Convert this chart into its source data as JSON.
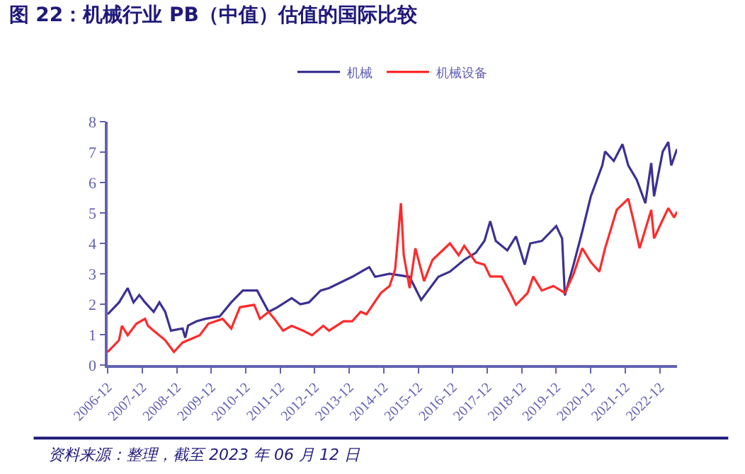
{
  "chart_data": {
    "type": "line",
    "title": "图 22：机械行业 PB（中值）估值的国际比较",
    "annotations": [
      "资料来源：整理，截至 2023 年 06 月 12 日"
    ],
    "series": [
      {
        "name": "机械",
        "color": "#3b3193",
        "x": [
          "2006-12",
          "2007-04",
          "2007-07",
          "2007-09",
          "2007-11",
          "2008-01",
          "2008-04",
          "2008-06",
          "2008-08",
          "2008-10",
          "2009-02",
          "2009-03",
          "2009-04",
          "2009-07",
          "2009-10",
          "2010-03",
          "2010-07",
          "2010-11",
          "2011-04",
          "2011-08",
          "2011-11",
          "2012-04",
          "2012-07",
          "2012-10",
          "2013-02",
          "2013-05",
          "2014-01",
          "2014-07",
          "2014-09",
          "2015-02",
          "2015-09",
          "2016-01",
          "2016-07",
          "2016-11",
          "2017-04",
          "2017-08",
          "2017-11",
          "2018-01",
          "2018-03",
          "2018-07",
          "2018-10",
          "2019-01",
          "2019-03",
          "2019-07",
          "2019-12",
          "2020-02",
          "2020-03",
          "2020-06",
          "2020-09",
          "2020-12",
          "2021-04",
          "2021-05",
          "2021-08",
          "2021-11",
          "2022-01",
          "2022-04",
          "2022-07",
          "2022-09",
          "2022-10",
          "2023-01",
          "2023-03",
          "2023-04",
          "2023-06"
        ],
        "values": [
          1.67,
          2.06,
          2.53,
          2.06,
          2.3,
          2.06,
          1.75,
          2.06,
          1.75,
          1.13,
          1.2,
          0.9,
          1.3,
          1.44,
          1.52,
          1.6,
          2.06,
          2.45,
          2.45,
          1.75,
          1.9,
          2.2,
          2.0,
          2.06,
          2.45,
          2.53,
          2.9,
          3.22,
          2.9,
          3.0,
          2.9,
          2.14,
          2.9,
          3.07,
          3.46,
          3.69,
          4.08,
          4.73,
          4.08,
          3.77,
          4.23,
          3.3,
          4.0,
          4.08,
          4.57,
          4.16,
          2.29,
          3.3,
          4.39,
          5.55,
          6.56,
          7.02,
          6.71,
          7.26,
          6.56,
          6.09,
          5.32,
          6.64,
          5.55,
          7.02,
          7.33,
          6.56,
          7.1
        ]
      },
      {
        "name": "机械设备",
        "color": "#ff2a2a",
        "x": [
          "2006-12",
          "2007-04",
          "2007-05",
          "2007-07",
          "2007-10",
          "2008-01",
          "2008-02",
          "2008-04",
          "2008-08",
          "2008-11",
          "2009-02",
          "2009-08",
          "2009-11",
          "2010-04",
          "2010-07",
          "2010-10",
          "2011-03",
          "2011-05",
          "2011-08",
          "2011-10",
          "2012-01",
          "2012-04",
          "2012-08",
          "2012-11",
          "2013-03",
          "2013-05",
          "2013-10",
          "2014-01",
          "2014-04",
          "2014-06",
          "2014-11",
          "2015-02",
          "2015-04",
          "2015-06",
          "2015-07",
          "2015-09",
          "2015-11",
          "2016-02",
          "2016-05",
          "2016-11",
          "2017-02",
          "2017-04",
          "2017-08",
          "2017-11",
          "2018-01",
          "2018-05",
          "2018-08",
          "2018-10",
          "2019-02",
          "2019-04",
          "2019-07",
          "2019-11",
          "2020-03",
          "2020-06",
          "2020-09",
          "2020-12",
          "2021-03",
          "2021-05",
          "2021-09",
          "2022-01",
          "2022-03",
          "2022-05",
          "2022-09",
          "2022-10",
          "2023-01",
          "2023-03",
          "2023-05",
          "2023-06"
        ],
        "values": [
          0.43,
          0.82,
          1.29,
          0.98,
          1.36,
          1.52,
          1.29,
          1.13,
          0.82,
          0.43,
          0.74,
          0.98,
          1.36,
          1.52,
          1.2,
          1.9,
          1.98,
          1.52,
          1.75,
          1.52,
          1.13,
          1.29,
          1.13,
          0.98,
          1.29,
          1.13,
          1.44,
          1.44,
          1.75,
          1.67,
          2.37,
          2.6,
          3.15,
          5.32,
          3.61,
          2.53,
          3.84,
          2.76,
          3.46,
          4.0,
          3.61,
          3.92,
          3.38,
          3.3,
          2.91,
          2.91,
          2.37,
          1.98,
          2.37,
          2.91,
          2.45,
          2.6,
          2.37,
          2.99,
          3.84,
          3.38,
          3.07,
          3.84,
          5.1,
          5.47,
          4.7,
          3.84,
          5.1,
          4.16,
          4.78,
          5.16,
          4.85,
          5.04
        ]
      }
    ],
    "xlim": [
      "2006-12",
      "2023-06"
    ],
    "xticks": [
      "2006-12",
      "2007-12",
      "2008-12",
      "2009-12",
      "2010-12",
      "2011-12",
      "2012-12",
      "2013-12",
      "2014-12",
      "2015-12",
      "2016-12",
      "2017-12",
      "2018-12",
      "2019-12",
      "2020-12",
      "2021-12",
      "2022-12"
    ],
    "ylim": [
      0,
      8
    ],
    "yticks": [
      0,
      1,
      2,
      3,
      4,
      5,
      6,
      7,
      8
    ],
    "legend": "top",
    "marker": "none",
    "line_style": "solid"
  }
}
